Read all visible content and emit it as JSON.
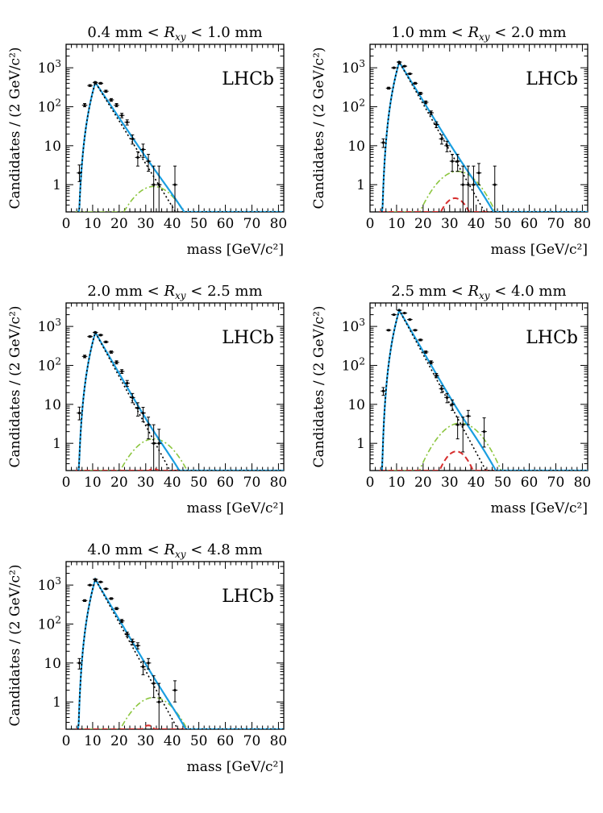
{
  "figure": {
    "ylabel_text": "Candidates / (2 GeV/c²)",
    "xlabel_text": "mass [GeV/c²]",
    "experiment_label": "LHCb",
    "colors": {
      "total_fit": "#1a9ee0",
      "background": "#000000",
      "signal_green": "#8cc63f",
      "signal_red": "#d62d2d"
    }
  },
  "chart_data": [
    {
      "type": "scatter",
      "title": "0.4 mm < R_xy < 1.0 mm",
      "title_parts": [
        "0.4 mm < ",
        "R",
        "xy",
        " < 1.0 mm"
      ],
      "xlabel": "mass [GeV/c²]",
      "ylabel": "Candidates / (2 GeV/c²)",
      "xlim": [
        0,
        82
      ],
      "ylim": [
        0.2,
        4000
      ],
      "yscale": "log",
      "xticks": [
        0,
        10,
        20,
        30,
        40,
        50,
        60,
        70,
        80
      ],
      "yticks": [
        "1",
        "10",
        "10²",
        "10³"
      ],
      "annotation": "LHCb",
      "points": [
        {
          "x": 5,
          "y": 2,
          "lo": 1.2,
          "hi": 3.2
        },
        {
          "x": 7,
          "y": 110,
          "lo": 100,
          "hi": 121
        },
        {
          "x": 9,
          "y": 350,
          "lo": 332,
          "hi": 369
        },
        {
          "x": 11,
          "y": 420,
          "lo": 400,
          "hi": 441
        },
        {
          "x": 13,
          "y": 400,
          "lo": 380,
          "hi": 420
        },
        {
          "x": 15,
          "y": 250,
          "lo": 234,
          "hi": 266
        },
        {
          "x": 17,
          "y": 150,
          "lo": 138,
          "hi": 162
        },
        {
          "x": 19,
          "y": 110,
          "lo": 100,
          "hi": 121
        },
        {
          "x": 21,
          "y": 60,
          "lo": 52,
          "hi": 68
        },
        {
          "x": 23,
          "y": 40,
          "lo": 34,
          "hi": 46
        },
        {
          "x": 25,
          "y": 15,
          "lo": 11,
          "hi": 19
        },
        {
          "x": 27,
          "y": 5,
          "lo": 3,
          "hi": 7
        },
        {
          "x": 29,
          "y": 8,
          "lo": 5,
          "hi": 11
        },
        {
          "x": 31,
          "y": 4,
          "lo": 2.2,
          "hi": 6
        },
        {
          "x": 33,
          "y": 1,
          "lo": 0.2,
          "hi": 3
        },
        {
          "x": 35,
          "y": 1,
          "lo": 0.2,
          "hi": 3
        },
        {
          "x": 41,
          "y": 1,
          "lo": 0.2,
          "hi": 3
        }
      ],
      "curves": {
        "total": {
          "amp": 420,
          "peak": 11,
          "rise": 3.8,
          "ymax": 4000
        },
        "background": {
          "amp": 420,
          "peak": 11,
          "rise": 3.8,
          "slope": 0.253,
          "ymax": 4000
        },
        "green": {
          "amp": 0.9,
          "mu": 33,
          "sigma": 6.5
        },
        "red": null
      }
    },
    {
      "type": "scatter",
      "title": "1.0 mm < R_xy < 2.0 mm",
      "title_parts": [
        "1.0 mm < ",
        "R",
        "xy",
        " < 2.0 mm"
      ],
      "xlabel": "mass [GeV/c²]",
      "ylabel": "Candidates / (2 GeV/c²)",
      "xlim": [
        0,
        82
      ],
      "ylim": [
        0.2,
        4000
      ],
      "yscale": "log",
      "xticks": [
        0,
        10,
        20,
        30,
        40,
        50,
        60,
        70,
        80
      ],
      "yticks": [
        "1",
        "10",
        "10²",
        "10³"
      ],
      "annotation": "LHCb",
      "points": [
        {
          "x": 5,
          "y": 12,
          "lo": 9,
          "hi": 15
        },
        {
          "x": 7,
          "y": 300,
          "lo": 283,
          "hi": 317
        },
        {
          "x": 9,
          "y": 1000,
          "lo": 968,
          "hi": 1032
        },
        {
          "x": 11,
          "y": 1400,
          "lo": 1363,
          "hi": 1437
        },
        {
          "x": 13,
          "y": 1100,
          "lo": 1067,
          "hi": 1133
        },
        {
          "x": 15,
          "y": 700,
          "lo": 674,
          "hi": 726
        },
        {
          "x": 17,
          "y": 400,
          "lo": 380,
          "hi": 420
        },
        {
          "x": 19,
          "y": 220,
          "lo": 205,
          "hi": 235
        },
        {
          "x": 21,
          "y": 130,
          "lo": 119,
          "hi": 141
        },
        {
          "x": 23,
          "y": 70,
          "lo": 62,
          "hi": 78
        },
        {
          "x": 25,
          "y": 35,
          "lo": 29,
          "hi": 41
        },
        {
          "x": 27,
          "y": 15,
          "lo": 11,
          "hi": 19
        },
        {
          "x": 29,
          "y": 10,
          "lo": 7,
          "hi": 13
        },
        {
          "x": 31,
          "y": 4,
          "lo": 2.2,
          "hi": 6
        },
        {
          "x": 33,
          "y": 4,
          "lo": 2.2,
          "hi": 6
        },
        {
          "x": 35,
          "y": 1,
          "lo": 0.2,
          "hi": 3
        },
        {
          "x": 37,
          "y": 1,
          "lo": 0.2,
          "hi": 3
        },
        {
          "x": 39,
          "y": 1,
          "lo": 0.2,
          "hi": 3
        },
        {
          "x": 41,
          "y": 2,
          "lo": 1,
          "hi": 3.5
        },
        {
          "x": 47,
          "y": 1,
          "lo": 0.2,
          "hi": 3
        }
      ],
      "curves": {
        "total": {
          "amp": 1400,
          "peak": 11,
          "rise": 3.8,
          "ymax": 4000
        },
        "background": {
          "amp": 1400,
          "peak": 11,
          "rise": 3.8,
          "slope": 0.275,
          "ymax": 4000
        },
        "green": {
          "amp": 2.2,
          "mu": 33,
          "sigma": 6.5
        },
        "red": {
          "amp": 0.45,
          "mu": 32,
          "sigma": 4.2
        }
      }
    },
    {
      "type": "scatter",
      "title": "2.0 mm < R_xy < 2.5 mm",
      "title_parts": [
        "2.0 mm < ",
        "R",
        "xy",
        " < 2.5 mm"
      ],
      "xlabel": "mass [GeV/c²]",
      "ylabel": "Candidates / (2 GeV/c²)",
      "xlim": [
        0,
        82
      ],
      "ylim": [
        0.2,
        4000
      ],
      "yscale": "log",
      "xticks": [
        0,
        10,
        20,
        30,
        40,
        50,
        60,
        70,
        80
      ],
      "yticks": [
        "1",
        "10",
        "10²",
        "10³"
      ],
      "annotation": "LHCb",
      "points": [
        {
          "x": 5,
          "y": 6,
          "lo": 4,
          "hi": 8.5
        },
        {
          "x": 7,
          "y": 170,
          "lo": 157,
          "hi": 183
        },
        {
          "x": 9,
          "y": 550,
          "lo": 527,
          "hi": 573
        },
        {
          "x": 11,
          "y": 700,
          "lo": 674,
          "hi": 726
        },
        {
          "x": 13,
          "y": 600,
          "lo": 576,
          "hi": 624
        },
        {
          "x": 15,
          "y": 400,
          "lo": 380,
          "hi": 420
        },
        {
          "x": 17,
          "y": 220,
          "lo": 205,
          "hi": 235
        },
        {
          "x": 19,
          "y": 120,
          "lo": 109,
          "hi": 131
        },
        {
          "x": 21,
          "y": 70,
          "lo": 62,
          "hi": 78
        },
        {
          "x": 23,
          "y": 35,
          "lo": 29,
          "hi": 41
        },
        {
          "x": 25,
          "y": 15,
          "lo": 11,
          "hi": 19
        },
        {
          "x": 27,
          "y": 8,
          "lo": 5,
          "hi": 11
        },
        {
          "x": 29,
          "y": 6,
          "lo": 3.6,
          "hi": 8.4
        },
        {
          "x": 31,
          "y": 3,
          "lo": 1.3,
          "hi": 4.7
        },
        {
          "x": 33,
          "y": 1,
          "lo": 0.2,
          "hi": 3
        },
        {
          "x": 35,
          "y": 1,
          "lo": 0.2,
          "hi": 2.3
        }
      ],
      "curves": {
        "total": {
          "amp": 700,
          "peak": 11,
          "rise": 3.8,
          "ymax": 4000
        },
        "background": {
          "amp": 700,
          "peak": 11,
          "rise": 3.8,
          "slope": 0.29,
          "ymax": 4000
        },
        "green": {
          "amp": 1.3,
          "mu": 33,
          "sigma": 6.5
        },
        "red": {
          "amp": 0.22,
          "mu": 33,
          "sigma": 4.2
        }
      }
    },
    {
      "type": "scatter",
      "title": "2.5 mm < R_xy < 4.0 mm",
      "title_parts": [
        "2.5 mm < ",
        "R",
        "xy",
        " < 4.0 mm"
      ],
      "xlabel": "mass [GeV/c²]",
      "ylabel": "Candidates / (2 GeV/c²)",
      "xlim": [
        0,
        82
      ],
      "ylim": [
        0.2,
        4000
      ],
      "yscale": "log",
      "xticks": [
        0,
        10,
        20,
        30,
        40,
        50,
        60,
        70,
        80
      ],
      "yticks": [
        "1",
        "10",
        "10²",
        "10³"
      ],
      "annotation": "LHCb",
      "points": [
        {
          "x": 5,
          "y": 22,
          "lo": 17,
          "hi": 27
        },
        {
          "x": 7,
          "y": 800,
          "lo": 772,
          "hi": 828
        },
        {
          "x": 9,
          "y": 2000,
          "lo": 1955,
          "hi": 2045
        },
        {
          "x": 11,
          "y": 2600,
          "lo": 2549,
          "hi": 2651
        },
        {
          "x": 13,
          "y": 2200,
          "lo": 2153,
          "hi": 2247
        },
        {
          "x": 15,
          "y": 1500,
          "lo": 1461,
          "hi": 1539
        },
        {
          "x": 17,
          "y": 800,
          "lo": 772,
          "hi": 828
        },
        {
          "x": 19,
          "y": 450,
          "lo": 429,
          "hi": 471
        },
        {
          "x": 21,
          "y": 220,
          "lo": 205,
          "hi": 235
        },
        {
          "x": 23,
          "y": 120,
          "lo": 109,
          "hi": 131
        },
        {
          "x": 25,
          "y": 55,
          "lo": 48,
          "hi": 62
        },
        {
          "x": 27,
          "y": 25,
          "lo": 20,
          "hi": 30
        },
        {
          "x": 29,
          "y": 15,
          "lo": 11,
          "hi": 19
        },
        {
          "x": 31,
          "y": 10,
          "lo": 7,
          "hi": 13
        },
        {
          "x": 33,
          "y": 3,
          "lo": 1.3,
          "hi": 4.7
        },
        {
          "x": 35,
          "y": 3,
          "lo": 0.6,
          "hi": 4.7
        },
        {
          "x": 37,
          "y": 5,
          "lo": 3,
          "hi": 7
        },
        {
          "x": 43,
          "y": 2,
          "lo": 0.8,
          "hi": 4.5
        }
      ],
      "curves": {
        "total": {
          "amp": 2600,
          "peak": 11,
          "rise": 3.8,
          "ymax": 4000
        },
        "background": {
          "amp": 2600,
          "peak": 11,
          "rise": 3.8,
          "slope": 0.29,
          "ymax": 4000
        },
        "green": {
          "amp": 3.3,
          "mu": 34,
          "sigma": 6.5
        },
        "red": {
          "amp": 0.62,
          "mu": 32.5,
          "sigma": 4.2
        }
      }
    },
    {
      "type": "scatter",
      "title": "4.0 mm < R_xy < 4.8 mm",
      "title_parts": [
        "4.0 mm < ",
        "R",
        "xy",
        " < 4.8 mm"
      ],
      "xlabel": "mass [GeV/c²]",
      "ylabel": "Candidates / (2 GeV/c²)",
      "xlim": [
        0,
        82
      ],
      "ylim": [
        0.2,
        4000
      ],
      "yscale": "log",
      "xticks": [
        0,
        10,
        20,
        30,
        40,
        50,
        60,
        70,
        80
      ],
      "yticks": [
        "1",
        "10",
        "10²",
        "10³"
      ],
      "annotation": "LHCb",
      "points": [
        {
          "x": 5,
          "y": 10,
          "lo": 7,
          "hi": 13
        },
        {
          "x": 7,
          "y": 400,
          "lo": 380,
          "hi": 420
        },
        {
          "x": 9,
          "y": 1000,
          "lo": 968,
          "hi": 1032
        },
        {
          "x": 11,
          "y": 1400,
          "lo": 1363,
          "hi": 1437
        },
        {
          "x": 13,
          "y": 1200,
          "lo": 1165,
          "hi": 1235
        },
        {
          "x": 15,
          "y": 800,
          "lo": 772,
          "hi": 828
        },
        {
          "x": 17,
          "y": 450,
          "lo": 429,
          "hi": 471
        },
        {
          "x": 19,
          "y": 250,
          "lo": 234,
          "hi": 266
        },
        {
          "x": 21,
          "y": 120,
          "lo": 109,
          "hi": 131
        },
        {
          "x": 23,
          "y": 55,
          "lo": 48,
          "hi": 62
        },
        {
          "x": 25,
          "y": 35,
          "lo": 29,
          "hi": 41
        },
        {
          "x": 27,
          "y": 28,
          "lo": 23,
          "hi": 33
        },
        {
          "x": 29,
          "y": 8,
          "lo": 5,
          "hi": 11
        },
        {
          "x": 31,
          "y": 10,
          "lo": 7,
          "hi": 13
        },
        {
          "x": 33,
          "y": 3,
          "lo": 1.3,
          "hi": 4.7
        },
        {
          "x": 35,
          "y": 1,
          "lo": 0.2,
          "hi": 3
        },
        {
          "x": 41,
          "y": 2,
          "lo": 1,
          "hi": 3.5
        }
      ],
      "curves": {
        "total": {
          "amp": 1400,
          "peak": 11,
          "rise": 3.8,
          "ymax": 4000
        },
        "background": {
          "amp": 1400,
          "peak": 11,
          "rise": 3.8,
          "slope": 0.285,
          "ymax": 4000
        },
        "green": {
          "amp": 1.3,
          "mu": 33,
          "sigma": 6.5
        },
        "red": {
          "amp": 0.25,
          "mu": 31,
          "sigma": 3.6
        }
      }
    }
  ]
}
